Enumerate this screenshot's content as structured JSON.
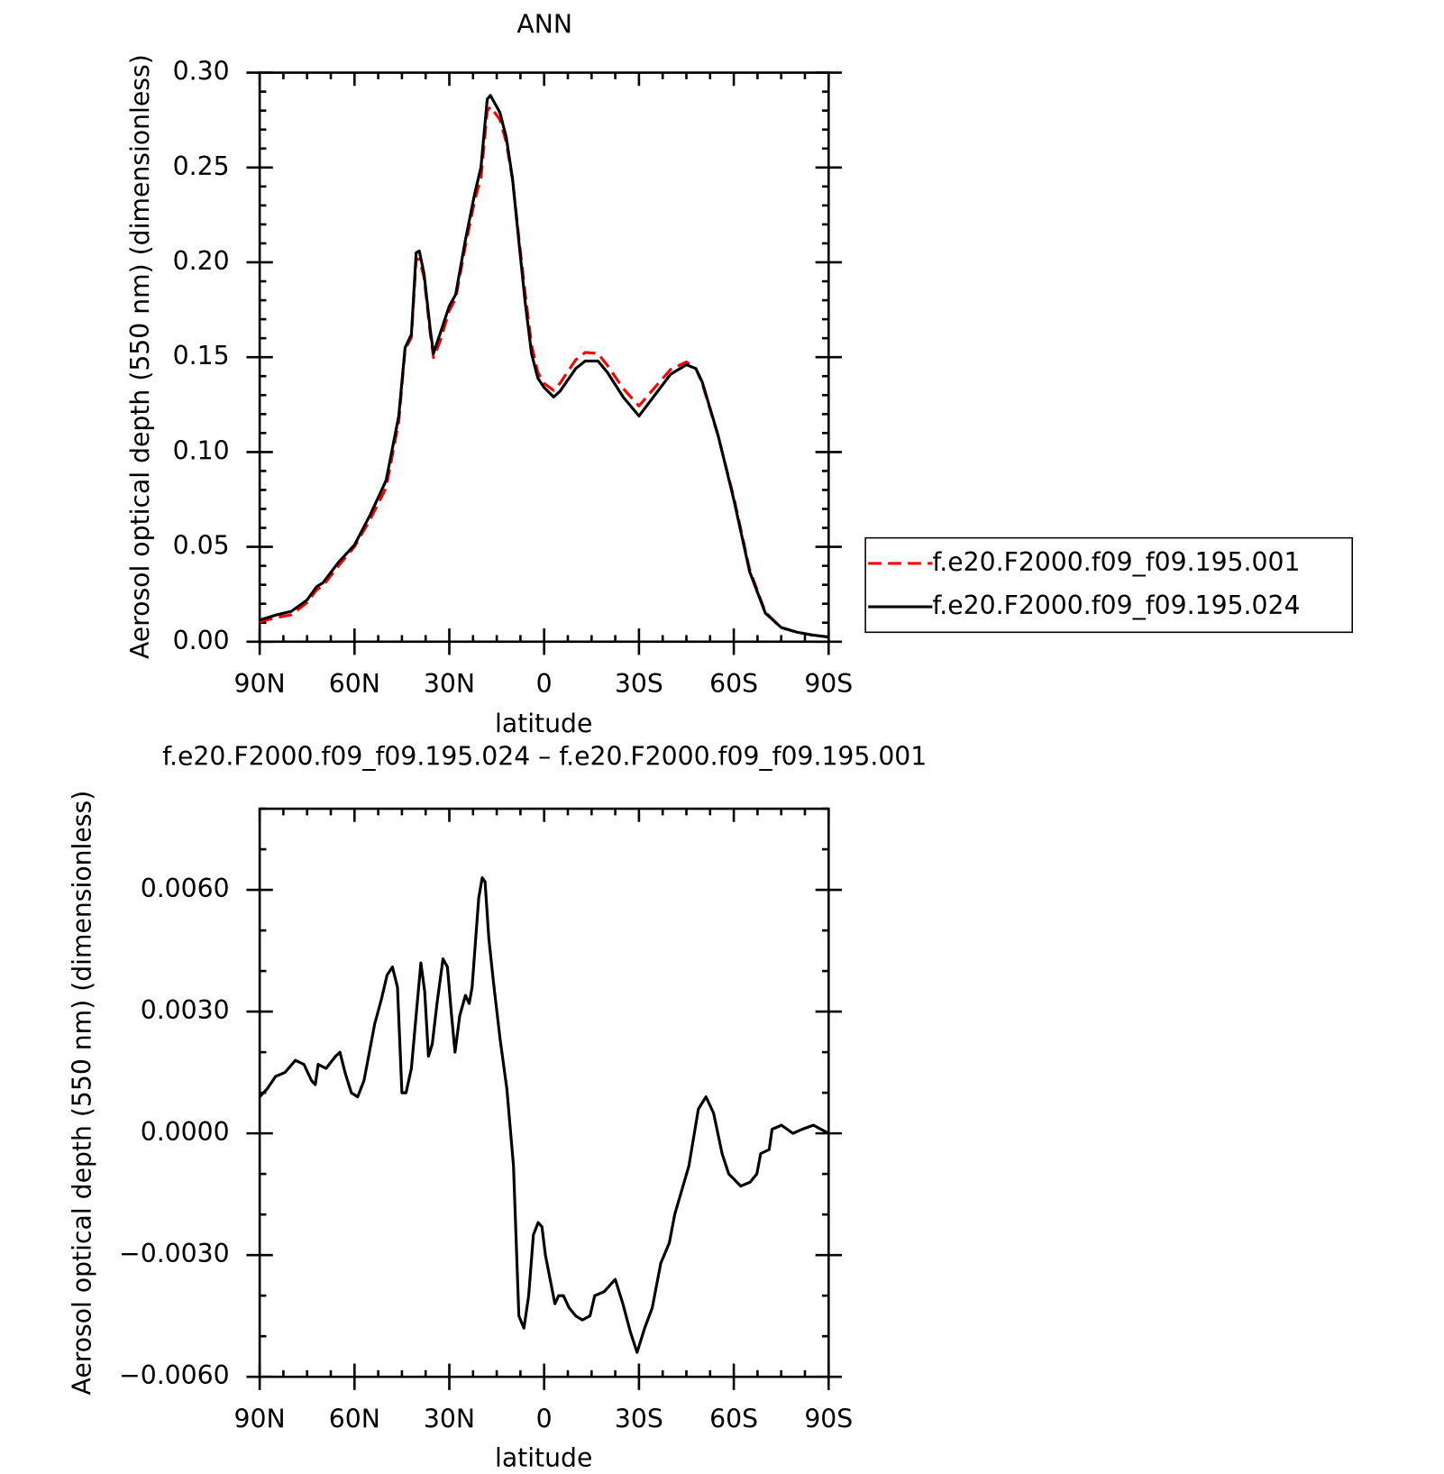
{
  "chart_data": [
    {
      "type": "line",
      "title": "ANN",
      "x_label": "latitude",
      "y_label": "Aerosol optical depth (550 nm) (dimensionless)",
      "x": [
        90,
        85,
        80,
        75,
        72,
        70,
        65,
        60,
        55,
        50,
        46,
        44,
        42,
        40.5,
        39.5,
        38,
        36,
        35,
        33,
        30,
        28,
        25,
        22,
        20,
        18,
        17,
        14,
        12,
        10,
        8,
        6,
        4,
        2,
        0,
        -3,
        -5,
        -10,
        -13,
        -17,
        -20,
        -25,
        -30,
        -35,
        -40,
        -45,
        -48,
        -50,
        -55,
        -60,
        -65,
        -70,
        -75,
        -80,
        -85,
        -90
      ],
      "xlim": [
        90,
        -90
      ],
      "xticks": [
        {
          "value": 90,
          "label": "90N"
        },
        {
          "value": 60,
          "label": "60N"
        },
        {
          "value": 30,
          "label": "30N"
        },
        0,
        {
          "value": -30,
          "label": "30S"
        },
        {
          "value": -60,
          "label": "60S"
        },
        {
          "value": -90,
          "label": "90S"
        }
      ],
      "ylim": [
        0,
        0.3
      ],
      "yticks": [
        {
          "value": 0,
          "label": "0.00"
        },
        {
          "value": 0.05,
          "label": "0.05"
        },
        {
          "value": 0.1,
          "label": "0.10"
        },
        {
          "value": 0.15,
          "label": "0.15"
        },
        {
          "value": 0.2,
          "label": "0.20"
        },
        {
          "value": 0.25,
          "label": "0.25"
        },
        {
          "value": 0.3,
          "label": "0.30"
        }
      ],
      "series": [
        {
          "name": "f.e20.F2000.f09_f09.195.001",
          "color": "#ff0000",
          "dashed": true,
          "values": [
            0.0105,
            0.0126,
            0.0142,
            0.0206,
            0.0273,
            0.0294,
            0.0401,
            0.0501,
            0.0645,
            0.0811,
            0.1159,
            0.154,
            0.1604,
            0.2015,
            0.2018,
            0.192,
            0.1621,
            0.1498,
            0.158,
            0.1745,
            0.1808,
            0.2078,
            0.2325,
            0.2443,
            0.2797,
            0.282,
            0.2753,
            0.2635,
            0.2435,
            0.213,
            0.1835,
            0.1566,
            0.142,
            0.1362,
            0.1325,
            0.1362,
            0.1486,
            0.1525,
            0.152,
            0.1457,
            0.1335,
            0.1243,
            0.134,
            0.1435,
            0.1475,
            0.144,
            0.1362,
            0.1087,
            0.0761,
            0.0382,
            0.0155,
            0.0074,
            0.005,
            0.0034,
            0.0025
          ]
        },
        {
          "name": "f.e20.F2000.f09_f09.195.024",
          "color": "#000000",
          "dashed": false,
          "values": [
            0.0114,
            0.014,
            0.016,
            0.022,
            0.029,
            0.031,
            0.042,
            0.051,
            0.067,
            0.085,
            0.119,
            0.155,
            0.162,
            0.205,
            0.206,
            0.194,
            0.164,
            0.152,
            0.162,
            0.177,
            0.183,
            0.211,
            0.236,
            0.25,
            0.286,
            0.288,
            0.279,
            0.266,
            0.244,
            0.211,
            0.179,
            0.152,
            0.139,
            0.134,
            0.129,
            0.132,
            0.144,
            0.148,
            0.148,
            0.142,
            0.129,
            0.119,
            0.13,
            0.141,
            0.146,
            0.144,
            0.137,
            0.109,
            0.075,
            0.037,
            0.015,
            0.0075,
            0.005,
            0.0035,
            0.0025
          ]
        }
      ],
      "legend": "right"
    },
    {
      "type": "line",
      "title": "f.e20.F2000.f09_f09.195.024 – f.e20.F2000.f09_f09.195.001",
      "x_label": "latitude",
      "y_label": "Aerosol optical depth (550 nm) (dimensionless)",
      "x": [
        90,
        87.6,
        85,
        82,
        78.7,
        76,
        73.6,
        72.4,
        71.5,
        69,
        66,
        64.6,
        63,
        61,
        59,
        57,
        53.6,
        51.5,
        49.7,
        48,
        46.4,
        45,
        43.7,
        42,
        40.4,
        39,
        37.8,
        36.6,
        35.4,
        33.9,
        32,
        30.6,
        29.4,
        28.2,
        26.7,
        24.9,
        23.7,
        22.8,
        20.7,
        19.6,
        18.7,
        17.5,
        16,
        13.9,
        11.8,
        9.7,
        8,
        6.4,
        4.9,
        3.4,
        1.9,
        0.7,
        -0.4,
        -1.9,
        -3.4,
        -4.6,
        -6.1,
        -7.9,
        -10,
        -12.1,
        -14.5,
        -16,
        -19,
        -21.3,
        -22.5,
        -24.9,
        -27.3,
        -29.4,
        -31.8,
        -34.2,
        -36.9,
        -39.6,
        -41.3,
        -45.8,
        -48.8,
        -51.2,
        -53.6,
        -56.3,
        -58.4,
        -62.2,
        -65.2,
        -67.3,
        -68.5,
        -71.2,
        -72.1,
        -75.1,
        -78.7,
        -81.6,
        -85.2,
        -90
      ],
      "xlim": [
        90,
        -90
      ],
      "xticks": [
        {
          "value": 90,
          "label": "90N"
        },
        {
          "value": 60,
          "label": "60N"
        },
        {
          "value": 30,
          "label": "30N"
        },
        0,
        {
          "value": -30,
          "label": "30S"
        },
        {
          "value": -60,
          "label": "60S"
        },
        {
          "value": -90,
          "label": "90S"
        }
      ],
      "ylim": [
        -0.006,
        0.008
      ],
      "yticks": [
        {
          "value": -0.006,
          "label": "−0.0060"
        },
        {
          "value": -0.003,
          "label": "−0.0030"
        },
        {
          "value": 0,
          "label": "0.0000"
        },
        {
          "value": 0.003,
          "label": "0.0030"
        },
        {
          "value": 0.006,
          "label": "0.0060"
        }
      ],
      "color": "#000000",
      "values": [
        0.0009,
        0.0011,
        0.0014,
        0.0015,
        0.0018,
        0.0017,
        0.0013,
        0.0012,
        0.0017,
        0.0016,
        0.0019,
        0.002,
        0.0015,
        0.001,
        0.0009,
        0.0013,
        0.0027,
        0.0033,
        0.0039,
        0.0041,
        0.0036,
        0.001,
        0.001,
        0.0016,
        0.003,
        0.0042,
        0.0035,
        0.0019,
        0.0022,
        0.0032,
        0.0043,
        0.0041,
        0.003,
        0.002,
        0.0029,
        0.0034,
        0.0032,
        0.0036,
        0.0058,
        0.0063,
        0.0062,
        0.0048,
        0.0037,
        0.0023,
        0.0011,
        -0.0008,
        -0.0045,
        -0.0048,
        -0.004,
        -0.0025,
        -0.0022,
        -0.0023,
        -0.003,
        -0.0036,
        -0.0042,
        -0.004,
        -0.004,
        -0.0043,
        -0.0045,
        -0.0046,
        -0.0045,
        -0.004,
        -0.0039,
        -0.0037,
        -0.0036,
        -0.0042,
        -0.0049,
        -0.0054,
        -0.0048,
        -0.0043,
        -0.0032,
        -0.0027,
        -0.002,
        -0.0008,
        0.0006,
        0.0009,
        0.0005,
        -0.0005,
        -0.001,
        -0.0013,
        -0.0012,
        -0.001,
        -0.0005,
        -0.0004,
        0.0001,
        0.0002,
        0,
        0.0001,
        0.0002,
        0
      ]
    }
  ]
}
